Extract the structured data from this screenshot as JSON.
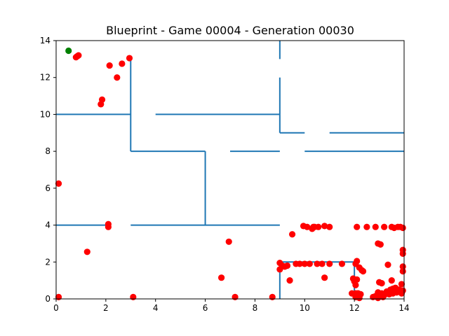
{
  "chart_data": {
    "type": "scatter",
    "title": "Blueprint - Game 00004 - Generation 00030",
    "xlabel": "",
    "ylabel": "",
    "xlim": [
      0,
      14
    ],
    "ylim": [
      0,
      14
    ],
    "grid": false,
    "x_ticks": [
      "0",
      "2",
      "4",
      "6",
      "8",
      "10",
      "12",
      "14"
    ],
    "y_ticks": [
      "0",
      "2",
      "4",
      "6",
      "8",
      "10",
      "12",
      "14"
    ],
    "colors": {
      "walls": "#1f77b4",
      "agents": "#ff0000",
      "goal": "#008000",
      "axes": "#000000"
    },
    "walls": [
      [
        [
          0,
          10
        ],
        [
          3,
          10
        ]
      ],
      [
        [
          4,
          10
        ],
        [
          9,
          10
        ]
      ],
      [
        [
          3,
          13
        ],
        [
          3,
          8
        ]
      ],
      [
        [
          3,
          8
        ],
        [
          6,
          8
        ]
      ],
      [
        [
          6,
          8
        ],
        [
          6,
          4
        ]
      ],
      [
        [
          0,
          4
        ],
        [
          2.2,
          4
        ]
      ],
      [
        [
          3,
          4
        ],
        [
          9,
          4
        ]
      ],
      [
        [
          7,
          8
        ],
        [
          9,
          8
        ]
      ],
      [
        [
          10,
          8
        ],
        [
          14,
          8
        ]
      ],
      [
        [
          9,
          14
        ],
        [
          9,
          13
        ]
      ],
      [
        [
          9,
          12
        ],
        [
          9,
          9
        ]
      ],
      [
        [
          9,
          9
        ],
        [
          10,
          9
        ]
      ],
      [
        [
          11,
          9
        ],
        [
          14,
          9
        ]
      ],
      [
        [
          9,
          2
        ],
        [
          12,
          2
        ]
      ],
      [
        [
          9,
          2
        ],
        [
          9,
          0
        ]
      ],
      [
        [
          12,
          2
        ],
        [
          12,
          0
        ]
      ]
    ],
    "series": [
      {
        "marker": "red-dot",
        "x": [
          0.8,
          0.9,
          0.85,
          2.15,
          2.65,
          2.95,
          2.45,
          1.85,
          1.8,
          0.1,
          2.1,
          2.1,
          1.25,
          0.1,
          3.1,
          6.65,
          6.95,
          7.2,
          8.7,
          9.0,
          9.1,
          9.2,
          9.0,
          9.3,
          9.5,
          9.4,
          9.65,
          9.8,
          9.95,
          10.1,
          10.35,
          10.55,
          10.8,
          11.0,
          10.0,
          10.2,
          10.3,
          10.4,
          10.5,
          10.7,
          11.0,
          11.5,
          11.9,
          12.05,
          12.05,
          12.1,
          12.2,
          12.3,
          12.35,
          11.95,
          12.0,
          12.05,
          12.1,
          12.15,
          12.25,
          10.8,
          12.1,
          12.5,
          12.85,
          13.2,
          13.5,
          13.6,
          13.75,
          13.85,
          13.95,
          12.95,
          13.05,
          13.35,
          13.95,
          13.95,
          13.95,
          13.95,
          13.5,
          12.95,
          13.0,
          13.1,
          13.3,
          13.45,
          13.55,
          13.65,
          13.8,
          13.9,
          13.95,
          12.75,
          12.85,
          12.95,
          13.05,
          13.15,
          13.2,
          13.1,
          13.4,
          13.55,
          13.7,
          13.9,
          12.05,
          12.2
        ],
        "y": [
          13.1,
          13.2,
          13.15,
          12.65,
          12.75,
          13.05,
          12.0,
          10.8,
          10.55,
          6.25,
          4.05,
          3.9,
          2.55,
          0.1,
          0.1,
          1.15,
          3.1,
          0.1,
          0.1,
          1.95,
          1.8,
          1.75,
          1.6,
          1.8,
          3.5,
          1.0,
          1.9,
          1.9,
          3.95,
          3.9,
          3.9,
          3.9,
          3.95,
          3.9,
          1.9,
          1.9,
          3.8,
          3.9,
          1.9,
          1.9,
          1.9,
          1.9,
          0.3,
          0.3,
          1.9,
          2.05,
          1.7,
          1.55,
          1.5,
          1.1,
          0.95,
          0.75,
          1.05,
          0.3,
          0.25,
          1.15,
          3.9,
          3.9,
          3.9,
          3.9,
          3.9,
          3.85,
          3.9,
          3.9,
          3.85,
          3.0,
          2.95,
          1.85,
          2.65,
          2.45,
          1.75,
          1.5,
          1.0,
          0.35,
          0.9,
          0.85,
          0.4,
          0.5,
          0.55,
          0.6,
          0.5,
          0.8,
          0.45,
          0.1,
          0.15,
          0.05,
          0.15,
          0.1,
          0.2,
          0.3,
          0.25,
          0.3,
          0.35,
          0.3,
          0.1,
          0.05
        ]
      },
      {
        "marker": "green-dot",
        "x": [
          0.5
        ],
        "y": [
          13.45
        ]
      }
    ]
  }
}
